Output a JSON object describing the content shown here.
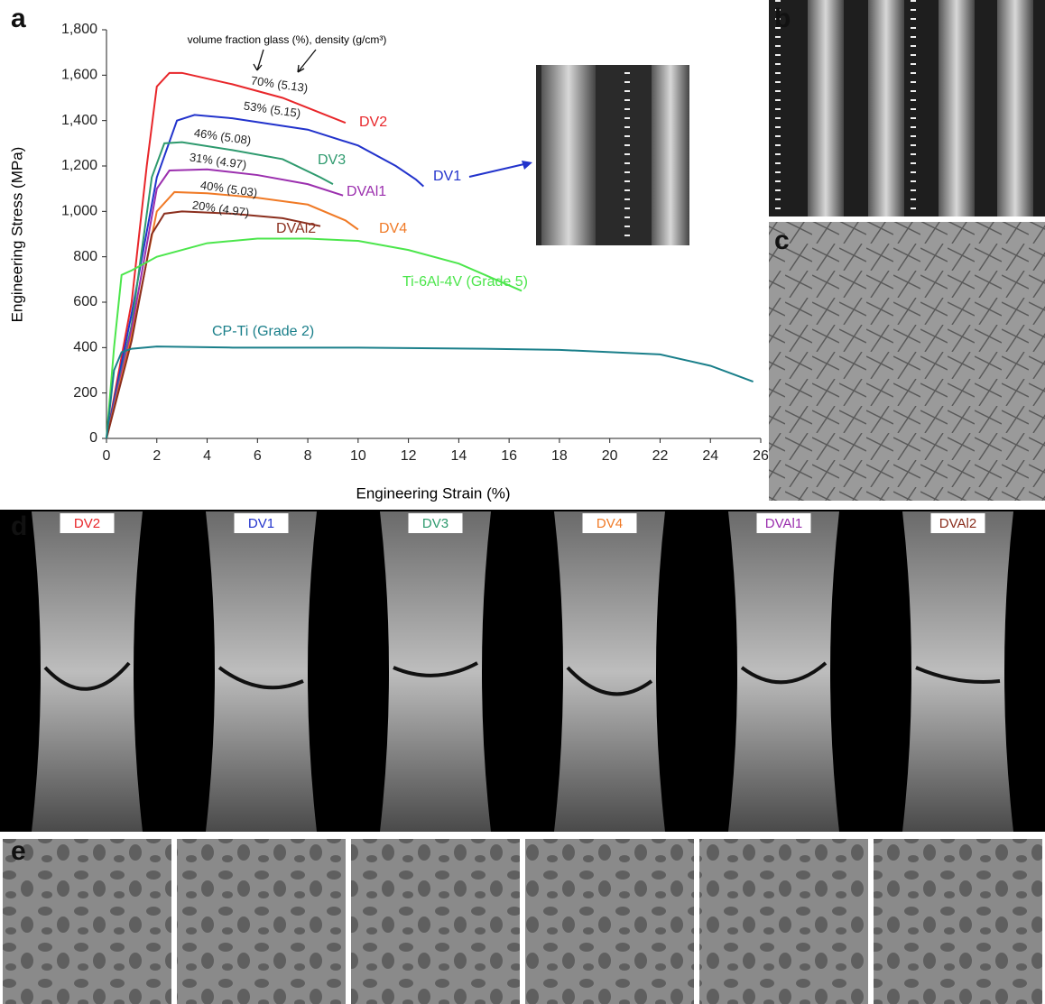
{
  "chart_data": {
    "type": "line",
    "x_label": "Engineering Strain (%)",
    "y_label": "Engineering Stress (MPa)",
    "note": "volume fraction glass (%), density (g/cm³)",
    "xlim": [
      0,
      26
    ],
    "xticks": [
      0,
      2,
      4,
      6,
      8,
      10,
      12,
      14,
      16,
      18,
      20,
      22,
      24,
      26
    ],
    "ylim": [
      0,
      1800
    ],
    "yticks": [
      0,
      200,
      400,
      600,
      800,
      {
        "value": 1000,
        "label": "1,000"
      },
      {
        "value": 1200,
        "label": "1,200"
      },
      {
        "value": 1400,
        "label": "1,400"
      },
      {
        "value": 1600,
        "label": "1,600"
      },
      {
        "value": 1800,
        "label": "1,800"
      }
    ],
    "series": [
      {
        "name": "DV2",
        "annotation": "70% (5.13)",
        "color": "#e8262a",
        "x": [
          0,
          1,
          1.6,
          2,
          2.5,
          3,
          5,
          7,
          9.5
        ],
        "values": [
          0,
          600,
          1200,
          1550,
          1610,
          1610,
          1560,
          1500,
          1390
        ]
      },
      {
        "name": "DV1",
        "annotation": "53% (5.15)",
        "color": "#2233cc",
        "x": [
          0,
          1,
          2,
          2.8,
          3.5,
          5,
          8,
          10,
          11.5,
          12.3,
          12.6
        ],
        "values": [
          0,
          550,
          1150,
          1400,
          1425,
          1410,
          1360,
          1290,
          1200,
          1140,
          1110
        ]
      },
      {
        "name": "DV3",
        "annotation": "46% (5.08)",
        "color": "#2e9a6e",
        "x": [
          0,
          1,
          1.8,
          2.3,
          3,
          5,
          7,
          8.5,
          9
        ],
        "values": [
          0,
          500,
          1150,
          1300,
          1305,
          1270,
          1230,
          1150,
          1120
        ]
      },
      {
        "name": "DVAl1",
        "annotation": "31% (4.97)",
        "color": "#9b2fae",
        "x": [
          0,
          1,
          2,
          2.5,
          4,
          6,
          8,
          9.4
        ],
        "values": [
          0,
          480,
          1100,
          1180,
          1185,
          1160,
          1120,
          1070
        ]
      },
      {
        "name": "DV4",
        "annotation": "40% (5.03)",
        "color": "#f07a26",
        "x": [
          0,
          1,
          2,
          2.7,
          4,
          6,
          8,
          9.5,
          10
        ],
        "values": [
          0,
          450,
          1000,
          1085,
          1080,
          1060,
          1030,
          960,
          920
        ]
      },
      {
        "name": "DVAl2",
        "annotation": "20% (4.97)",
        "color": "#8b2f1e",
        "x": [
          0,
          1,
          1.8,
          2.3,
          3,
          5,
          7,
          8.5
        ],
        "values": [
          0,
          430,
          900,
          990,
          1000,
          990,
          970,
          935
        ]
      },
      {
        "name": "Ti-6Al-4V (Grade 5)",
        "color": "#4ce64c",
        "x": [
          0,
          0.3,
          0.6,
          1,
          2,
          4,
          6,
          8,
          10,
          12,
          14,
          16.5
        ],
        "values": [
          0,
          400,
          720,
          740,
          800,
          860,
          880,
          880,
          870,
          830,
          770,
          650
        ]
      },
      {
        "name": "CP-Ti (Grade 2)",
        "color": "#1a7f8a",
        "x": [
          0,
          0.3,
          0.6,
          1,
          2,
          5,
          10,
          15,
          18,
          22,
          24,
          25.7
        ],
        "values": [
          0,
          300,
          380,
          395,
          405,
          400,
          400,
          395,
          390,
          370,
          320,
          250
        ]
      }
    ]
  },
  "panels": [
    "a",
    "b",
    "c",
    "d",
    "e"
  ],
  "specimen_labels": [
    {
      "text": "DV2",
      "color": "#e8262a"
    },
    {
      "text": "DV1",
      "color": "#2233cc"
    },
    {
      "text": "DV3",
      "color": "#2e9a6e"
    },
    {
      "text": "DV4",
      "color": "#f07a26"
    },
    {
      "text": "DVAl1",
      "color": "#9b2fae"
    },
    {
      "text": "DVAl2",
      "color": "#8b2f1e"
    }
  ]
}
